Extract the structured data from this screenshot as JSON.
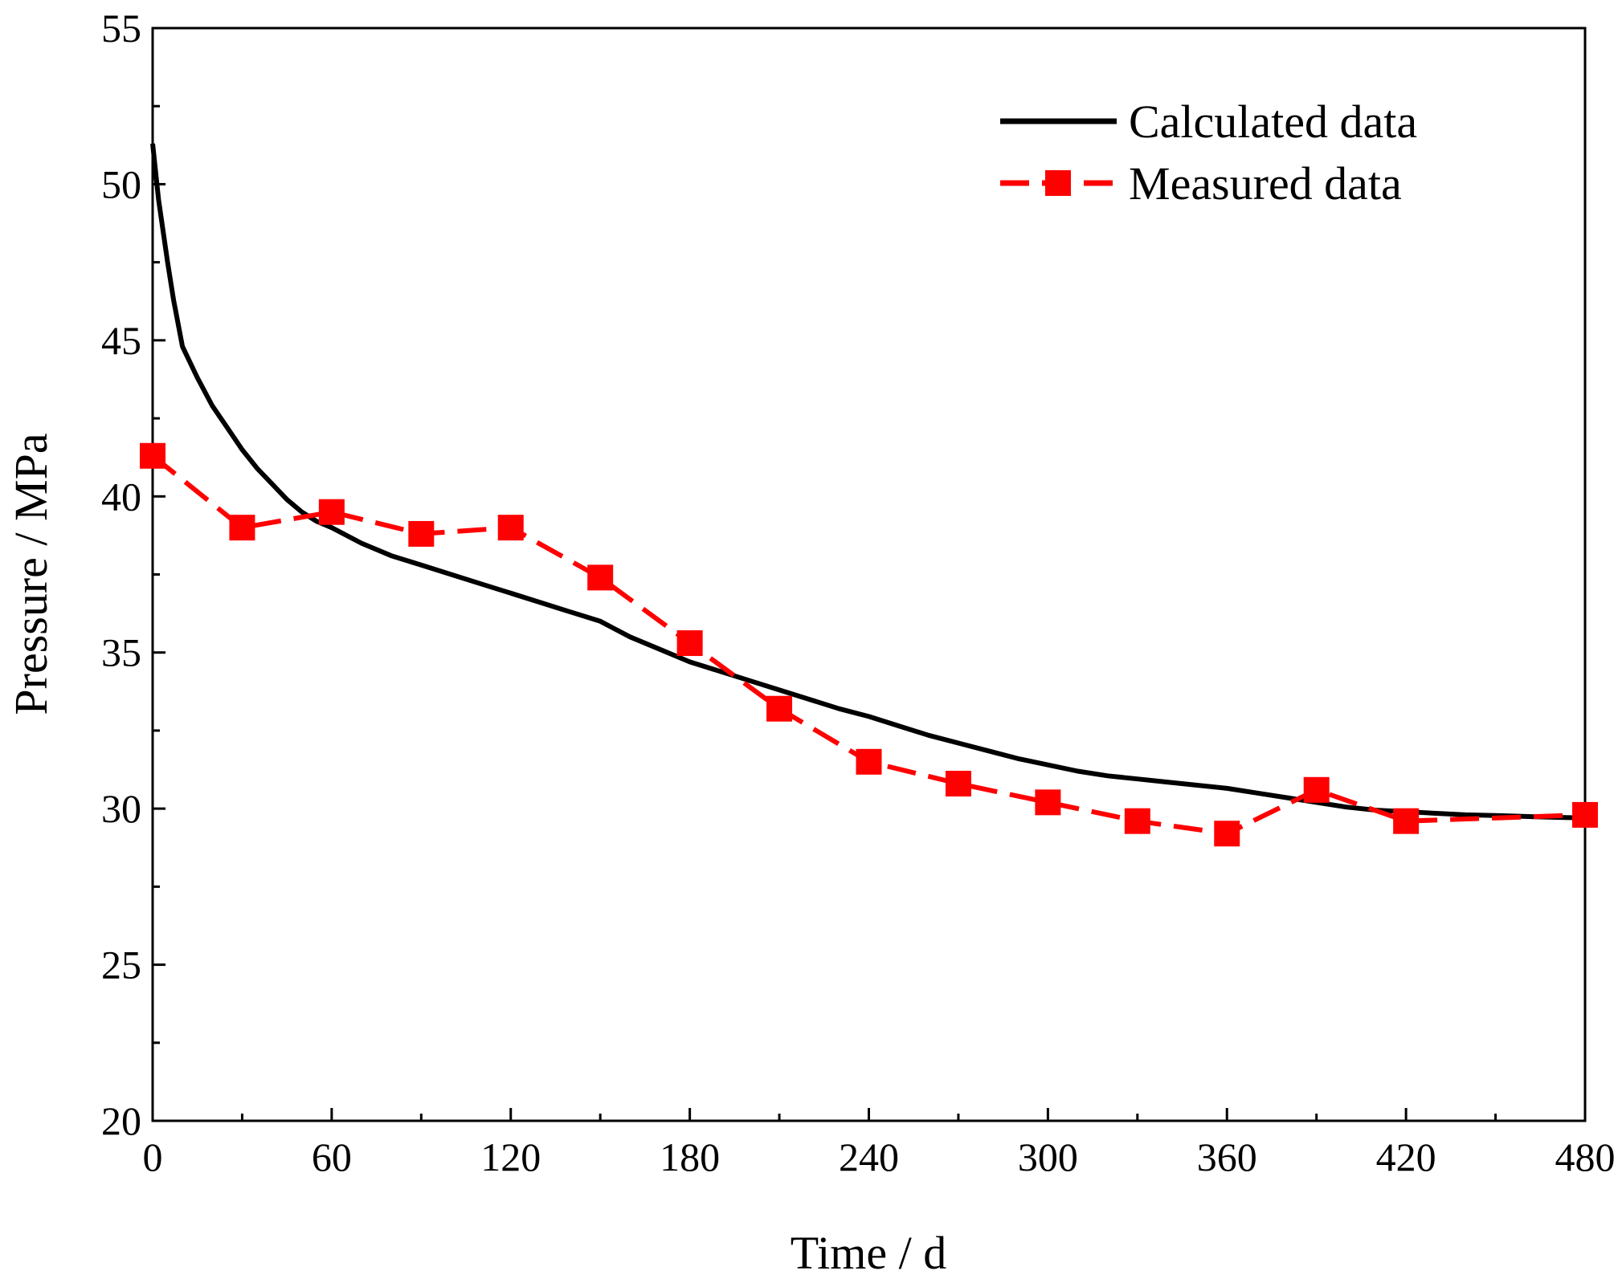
{
  "chart_data": {
    "type": "line",
    "title": "",
    "xlabel": "Time / d",
    "ylabel": "Pressure / MPa",
    "xlim": [
      0,
      480
    ],
    "ylim": [
      20,
      55
    ],
    "xticks": [
      0,
      60,
      120,
      180,
      240,
      300,
      360,
      420,
      480
    ],
    "yticks": [
      20,
      25,
      30,
      35,
      40,
      45,
      50,
      55
    ],
    "x_minor_step": 30,
    "y_minor_step": 2.5,
    "grid": false,
    "legend_position": "top-right",
    "series": [
      {
        "name": "Calculated data",
        "style": "solid line",
        "color": "#000000",
        "x": [
          0,
          2,
          5,
          7,
          10,
          15,
          20,
          25,
          30,
          35,
          40,
          45,
          50,
          55,
          60,
          70,
          80,
          90,
          100,
          110,
          120,
          130,
          140,
          150,
          160,
          170,
          180,
          190,
          200,
          210,
          220,
          230,
          240,
          250,
          260,
          270,
          280,
          290,
          300,
          310,
          320,
          330,
          340,
          350,
          360,
          370,
          380,
          390,
          400,
          410,
          420,
          430,
          440,
          450,
          460,
          470,
          480
        ],
        "y": [
          51.3,
          49.5,
          47.5,
          46.3,
          44.8,
          43.8,
          42.9,
          42.2,
          41.5,
          40.9,
          40.4,
          39.9,
          39.5,
          39.2,
          39.0,
          38.5,
          38.1,
          37.8,
          37.5,
          37.2,
          36.9,
          36.6,
          36.3,
          36.0,
          35.5,
          35.1,
          34.7,
          34.4,
          34.1,
          33.8,
          33.5,
          33.2,
          32.95,
          32.65,
          32.35,
          32.1,
          31.85,
          31.6,
          31.4,
          31.2,
          31.05,
          30.95,
          30.85,
          30.75,
          30.65,
          30.5,
          30.35,
          30.2,
          30.05,
          29.95,
          29.9,
          29.85,
          29.8,
          29.78,
          29.75,
          29.72,
          29.7
        ]
      },
      {
        "name": "Measured data",
        "style": "dashed line with square markers",
        "color": "#ff0000",
        "x": [
          0,
          30,
          60,
          90,
          120,
          150,
          180,
          210,
          240,
          270,
          300,
          330,
          360,
          390,
          420,
          480
        ],
        "y": [
          41.3,
          39.0,
          39.5,
          38.8,
          39.0,
          37.4,
          35.3,
          33.2,
          31.5,
          30.8,
          30.2,
          29.6,
          29.2,
          30.6,
          29.6,
          29.8
        ]
      }
    ]
  }
}
